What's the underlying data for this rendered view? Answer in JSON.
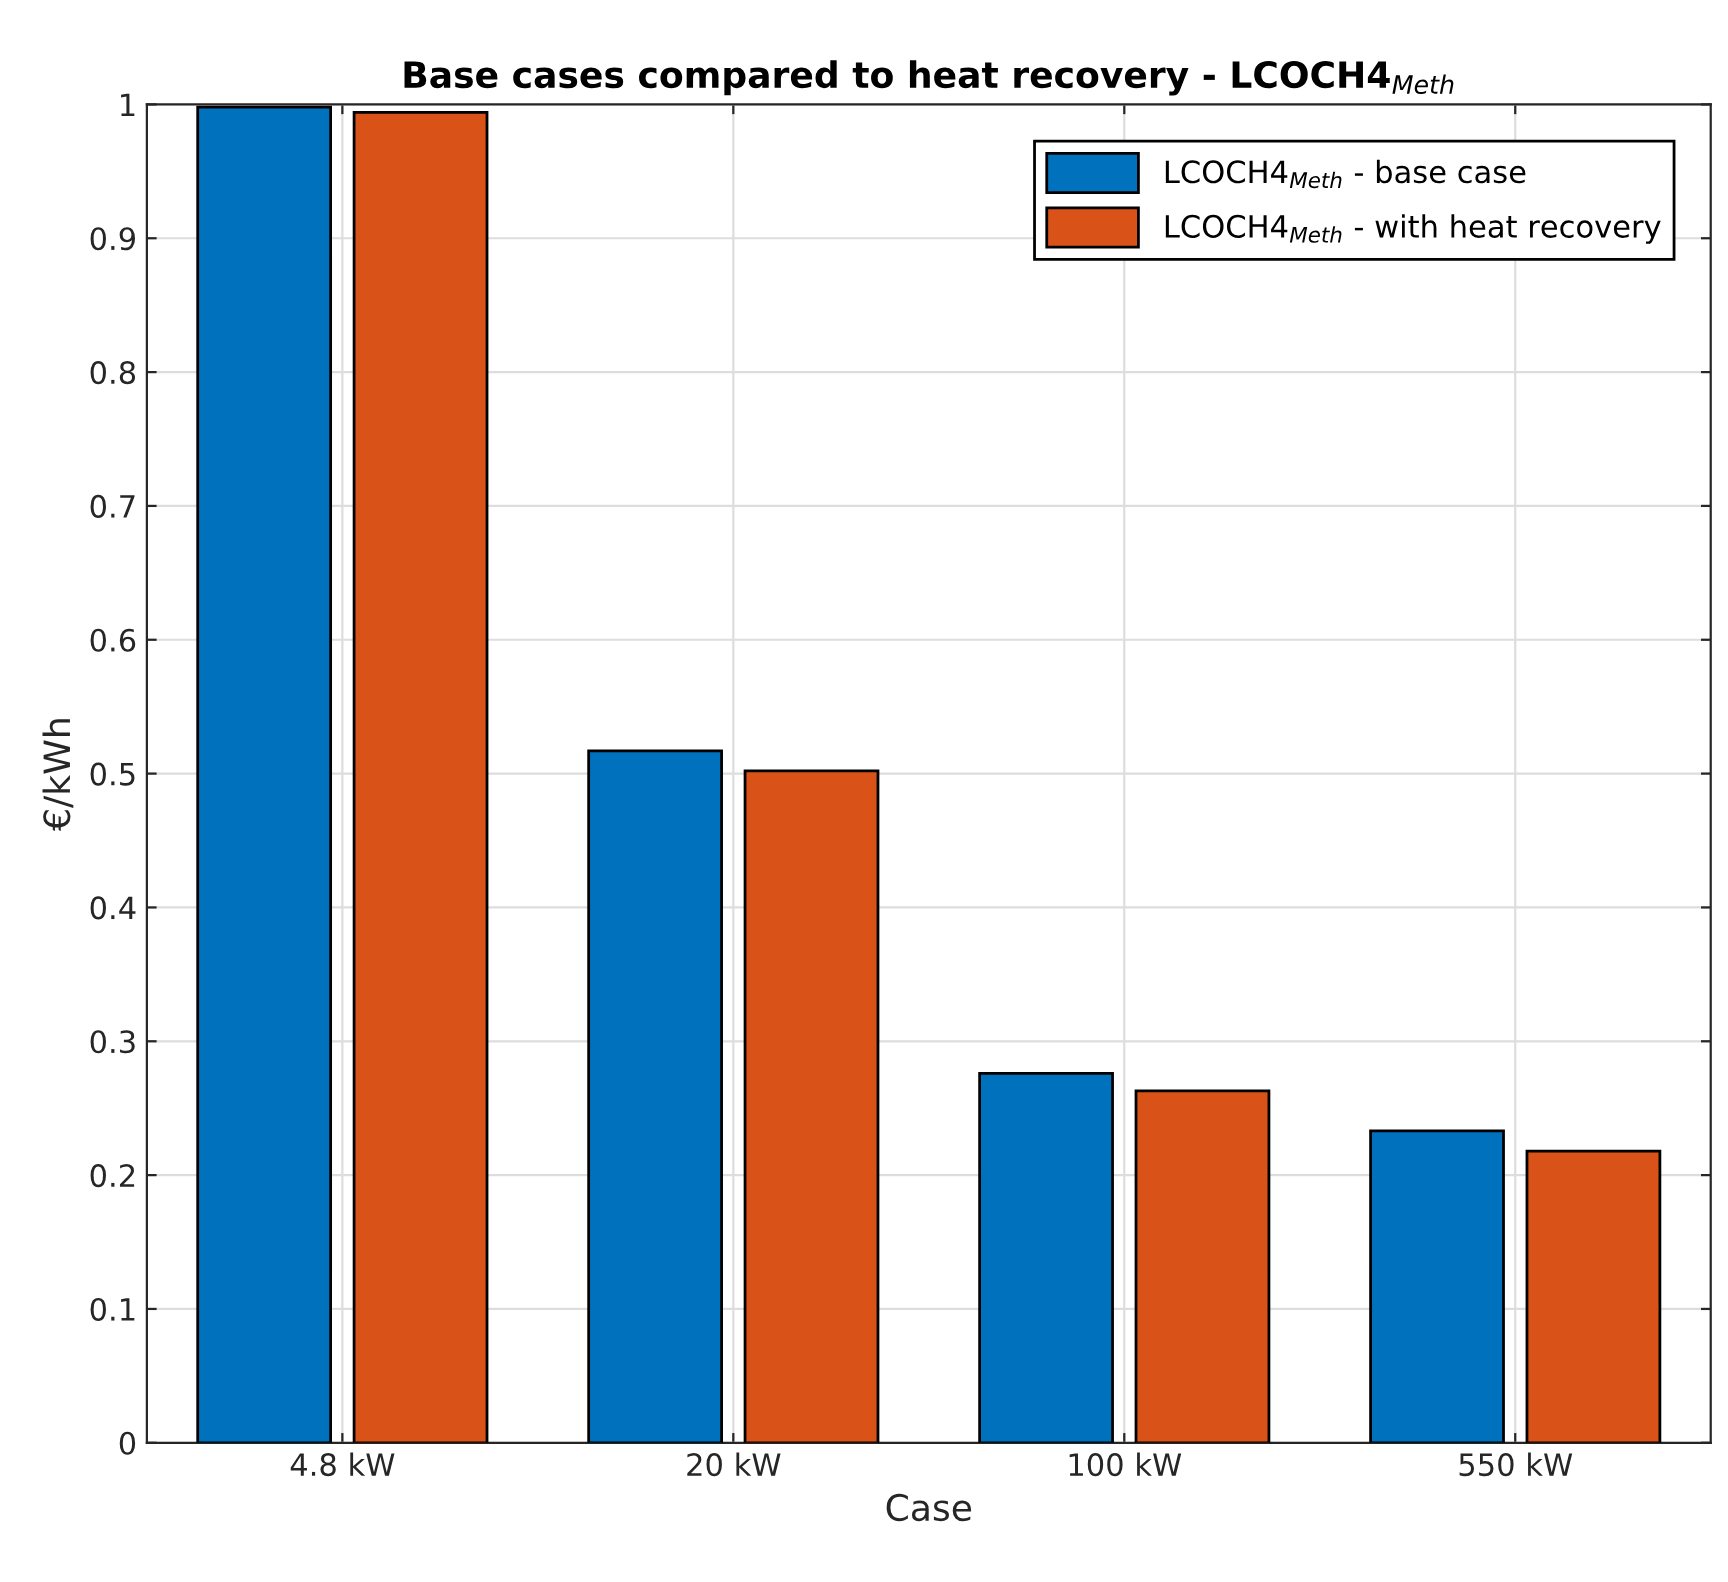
{
  "chart_data": {
    "type": "bar",
    "title": "Base cases compared to heat recovery - LCOCH4$_{Meth}$",
    "xlabel": "Case",
    "ylabel": "€/kWh",
    "categories": [
      "4.8 kW",
      "20 kW",
      "100 kW",
      "550 kW"
    ],
    "series": [
      {
        "name": "LCOCH4$_{Meth}$ - base case",
        "color": "#0072bd",
        "values": [
          0.998,
          0.517,
          0.276,
          0.233
        ]
      },
      {
        "name": "LCOCH4$_{Meth}$ - with heat recovery",
        "color": "#d95319",
        "values": [
          0.994,
          0.502,
          0.263,
          0.218
        ]
      }
    ],
    "ylim": [
      0,
      1
    ],
    "yticks": [
      0,
      0.1,
      0.2,
      0.3,
      0.4,
      0.5,
      0.6,
      0.7,
      0.8,
      0.9,
      1
    ],
    "grid": true,
    "legend": "top right"
  }
}
